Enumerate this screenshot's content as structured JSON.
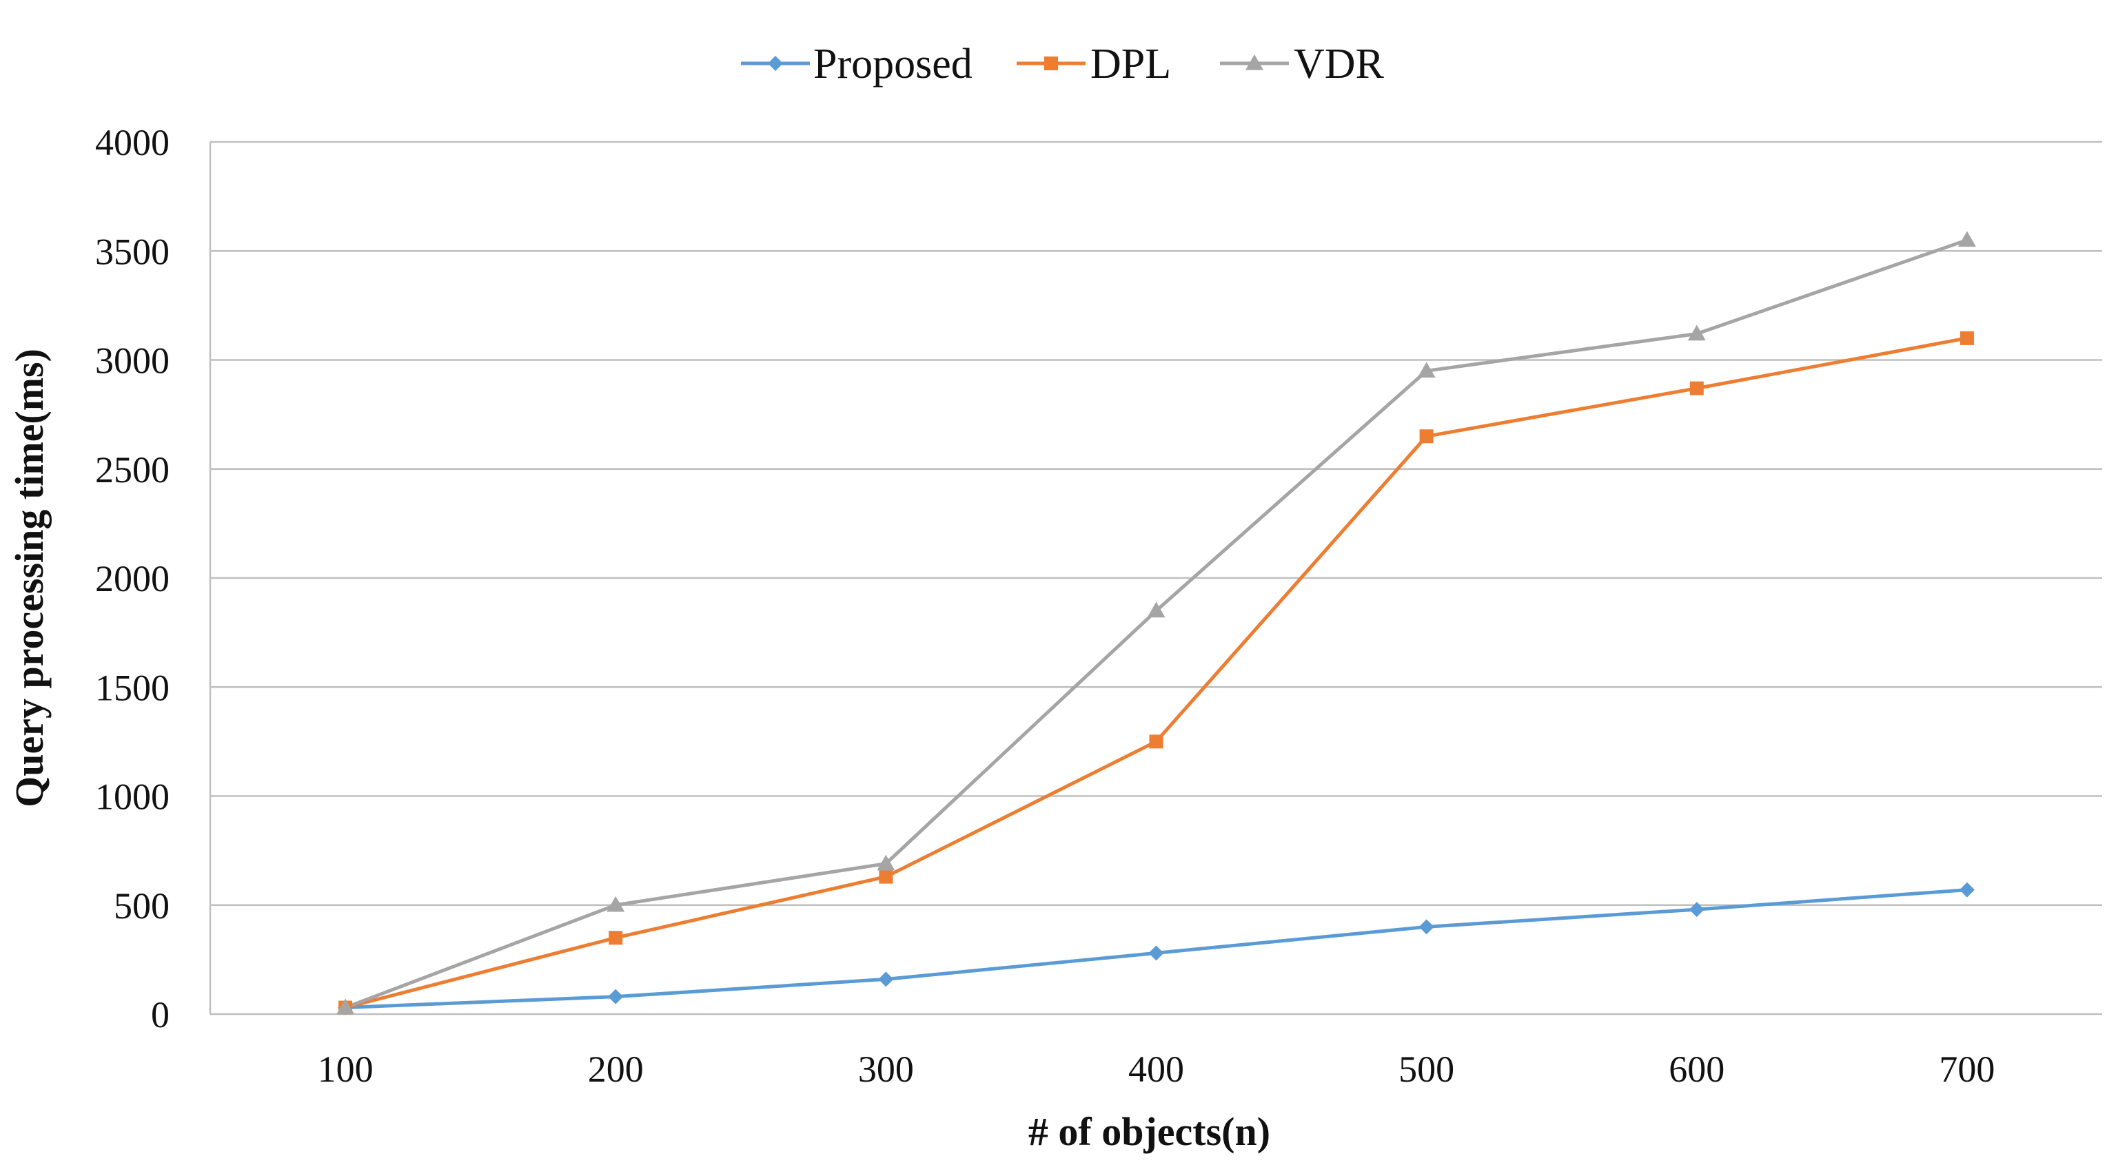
{
  "chart_data": {
    "type": "line",
    "title": "",
    "xlabel": "# of objects(n)",
    "ylabel": "Query processing time(ms)",
    "x": [
      100,
      200,
      300,
      400,
      500,
      600,
      700
    ],
    "x_tick_labels": [
      "100",
      "200",
      "300",
      "400",
      "500",
      "600",
      "700"
    ],
    "ylim": [
      0,
      4000
    ],
    "y_ticks": [
      0,
      500,
      1000,
      1500,
      2000,
      2500,
      3000,
      3500,
      4000
    ],
    "y_tick_labels": [
      "0",
      "500",
      "1000",
      "1500",
      "2000",
      "2500",
      "3000",
      "3500",
      "4000"
    ],
    "grid": true,
    "legend_position": "top-center",
    "series": [
      {
        "name": "Proposed",
        "color": "#5B9BD5",
        "marker": "diamond",
        "values": [
          30,
          80,
          160,
          280,
          400,
          480,
          570
        ]
      },
      {
        "name": "DPL",
        "color": "#ED7D31",
        "marker": "square",
        "values": [
          30,
          350,
          630,
          1250,
          2650,
          2870,
          3100
        ]
      },
      {
        "name": "VDR",
        "color": "#A5A5A5",
        "marker": "triangle",
        "values": [
          30,
          500,
          690,
          1850,
          2950,
          3120,
          3550
        ]
      }
    ]
  }
}
